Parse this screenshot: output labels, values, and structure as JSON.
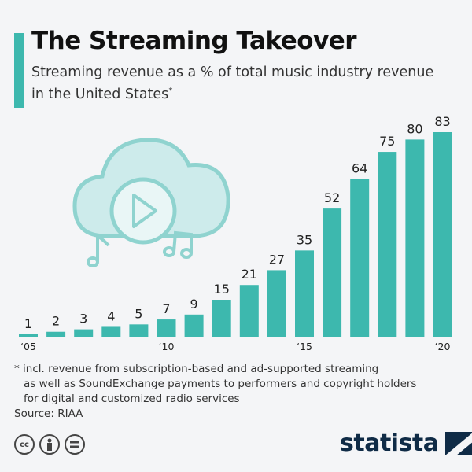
{
  "header": {
    "title": "The Streaming Takeover",
    "subtitle": "Streaming revenue as a % of total music industry revenue in the United States",
    "subtitle_mark": "*"
  },
  "chart_data": {
    "type": "bar",
    "title": "The Streaming Takeover",
    "subtitle": "Streaming revenue as a % of total music industry revenue in the United States",
    "categories": [
      "2005",
      "2006",
      "2007",
      "2008",
      "2009",
      "2010",
      "2011",
      "2012",
      "2013",
      "2014",
      "2015",
      "2016",
      "2017",
      "2018",
      "2019",
      "2020"
    ],
    "values": [
      1,
      2,
      3,
      4,
      5,
      7,
      9,
      15,
      21,
      27,
      35,
      52,
      64,
      75,
      80,
      83
    ],
    "x_tick_labels": [
      {
        "index": 0,
        "label": "‘05"
      },
      {
        "index": 5,
        "label": "‘10"
      },
      {
        "index": 10,
        "label": "‘15"
      },
      {
        "index": 15,
        "label": "‘20"
      }
    ],
    "xlabel": "",
    "ylabel": "",
    "ylim": [
      0,
      85
    ],
    "grid": false,
    "bar_color": "#3db8ae"
  },
  "footnote": {
    "line1": "* incl. revenue from subscription-based and ad-supported streaming",
    "line2": "as well as SoundExchange payments to performers and copyright holders",
    "line3": "for digital and customized radio services"
  },
  "source": "Source: RIAA",
  "license_icons": [
    "cc-icon",
    "attribution-icon",
    "no-derivatives-icon"
  ],
  "license_cc_text": "cc",
  "logo": "statista"
}
